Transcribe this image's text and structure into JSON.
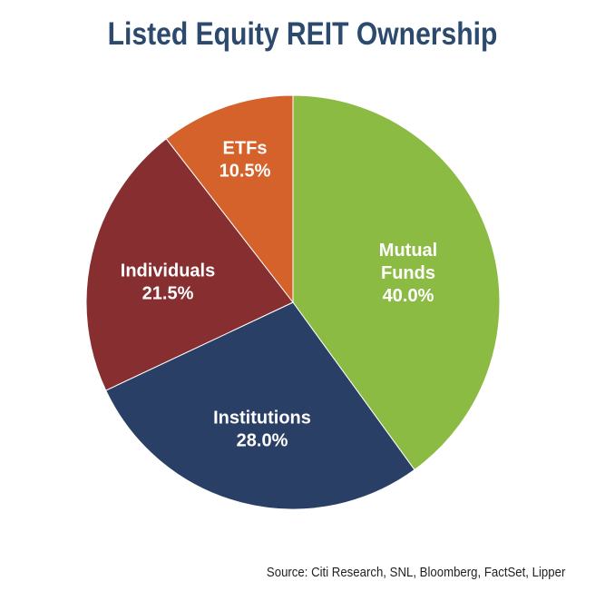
{
  "chart_data": {
    "type": "pie",
    "title": "Listed Equity REIT Ownership",
    "source": "Source: Citi Research, SNL, Bloomberg, FactSet, Lipper",
    "start_angle_deg": 0,
    "direction": "clockwise",
    "slices": [
      {
        "label_lines": [
          "Mutual",
          "Funds"
        ],
        "value": 40.0,
        "value_label": "40.0%",
        "color": "#8cbb44"
      },
      {
        "label_lines": [
          "Institutions"
        ],
        "value": 28.0,
        "value_label": "28.0%",
        "color": "#293f66"
      },
      {
        "label_lines": [
          "Individuals"
        ],
        "value": 21.5,
        "value_label": "21.5%",
        "color": "#862e30"
      },
      {
        "label_lines": [
          "ETFs"
        ],
        "value": 10.5,
        "value_label": "10.5%",
        "color": "#d4622a"
      }
    ]
  }
}
